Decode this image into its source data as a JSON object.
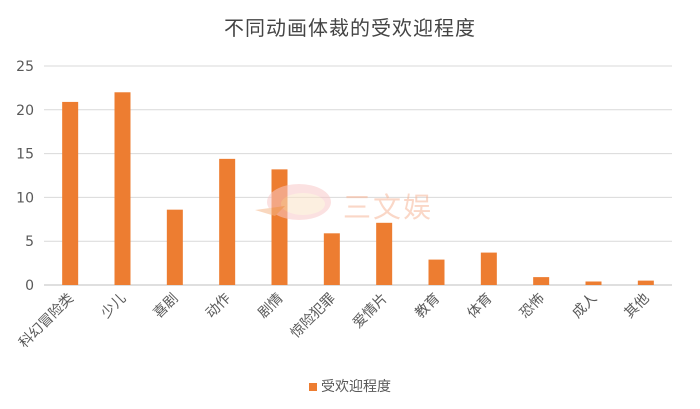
{
  "chart_data": {
    "type": "bar",
    "title": "不同动画体裁的受欢迎程度",
    "categories": [
      "科幻冒险类",
      "少儿",
      "喜剧",
      "动作",
      "剧情",
      "惊险犯罪",
      "爱情片",
      "教育",
      "体育",
      "恐怖",
      "成人",
      "其他"
    ],
    "series": [
      {
        "name": "受欢迎程度",
        "values": [
          20.9,
          22.0,
          8.6,
          14.4,
          13.2,
          5.9,
          7.1,
          2.9,
          3.7,
          0.9,
          0.4,
          0.5
        ]
      }
    ],
    "ylim": [
      0,
      25
    ],
    "yticks": [
      0,
      5,
      10,
      15,
      20,
      25
    ],
    "grid": true,
    "legend_position": "bottom",
    "bar_color": "#ED7D31"
  },
  "watermark": {
    "text": "三文娱"
  }
}
